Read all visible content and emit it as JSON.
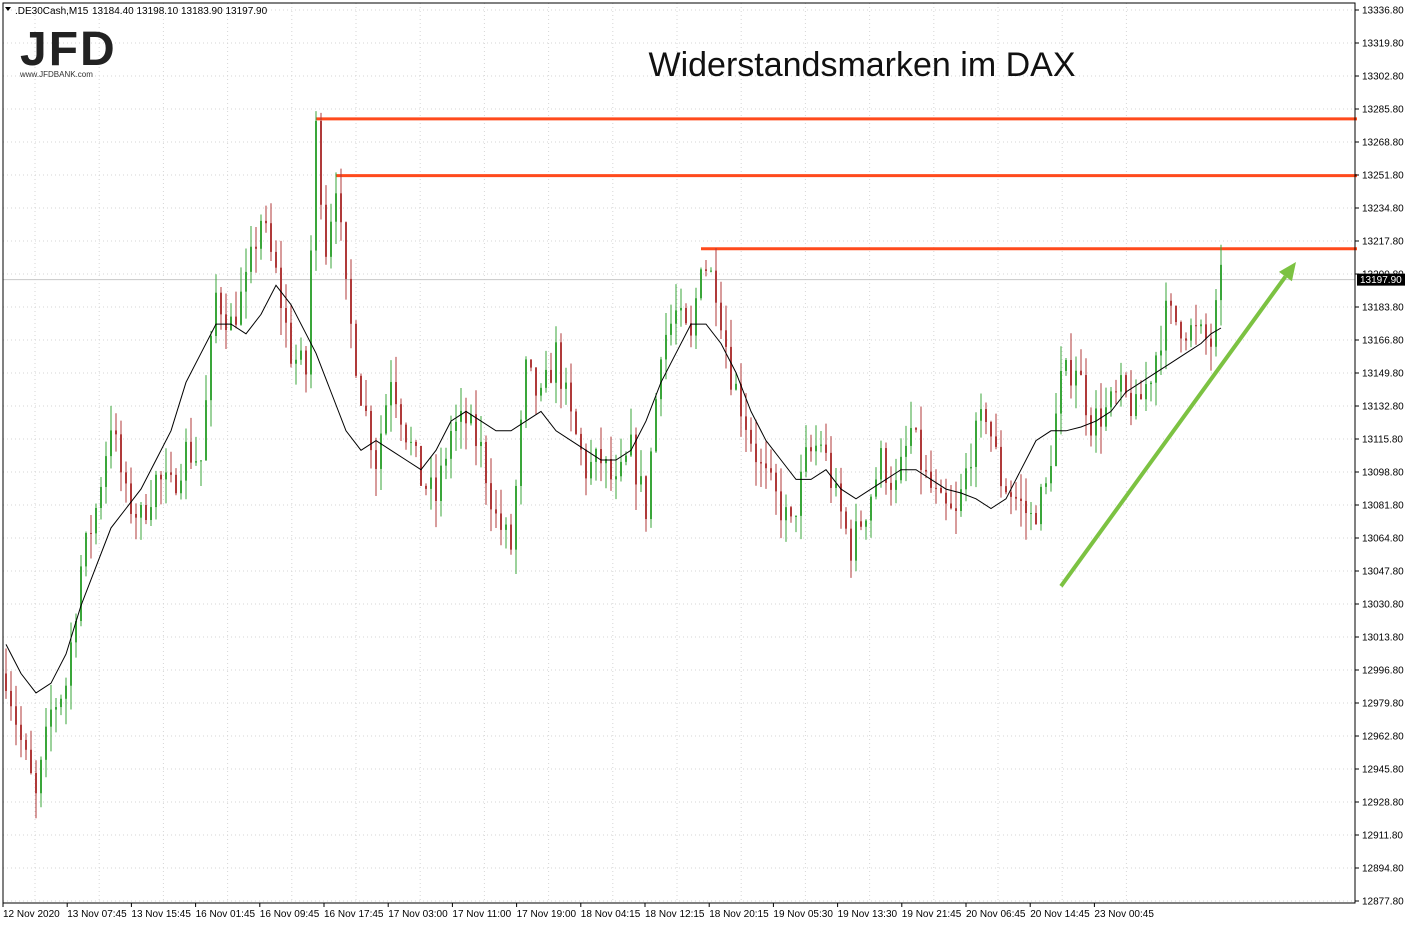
{
  "header": {
    "symbol": ".DE30Cash,M15",
    "ohlc": "13184.40 13198.10 13183.90 13197.90"
  },
  "logo": {
    "text": "JFD",
    "url_text": "www.JFDBANK.com"
  },
  "colors": {
    "up": "#3aa63a",
    "down": "#b03a3a",
    "ma": "#000000",
    "resistance": "#ff4a1c",
    "trend_arrow": "#7cc242",
    "grid": "#d6d6d6"
  },
  "chart_data": {
    "type": "candlestick",
    "title": "Widerstandsmarken im DAX",
    "ylim": [
      12877.8,
      13336.8
    ],
    "y_ticks": [
      13336.8,
      13319.8,
      13302.8,
      13285.8,
      13268.8,
      13251.8,
      13234.8,
      13217.8,
      13200.8,
      13183.8,
      13166.8,
      13149.8,
      13132.8,
      13115.8,
      13098.8,
      13081.8,
      13064.8,
      13047.8,
      13030.8,
      13013.8,
      12996.8,
      12979.8,
      12962.8,
      12945.8,
      12928.8,
      12911.8,
      12894.8,
      12877.8
    ],
    "y_tick_labels": [
      "13336.80",
      "13319.80",
      "13302.80",
      "13285.80",
      "13268.80",
      "13251.80",
      "13234.80",
      "13217.80",
      "13200.80",
      "13183.80",
      "13166.80",
      "13149.80",
      "13132.80",
      "13115.80",
      "13098.80",
      "13081.80",
      "13064.80",
      "13047.80",
      "13030.80",
      "13013.80",
      "12996.80",
      "12979.80",
      "12962.80",
      "12945.80",
      "12928.80",
      "12911.80",
      "12894.80",
      "12877.80"
    ],
    "current_price": 13197.9,
    "current_price_label": "13197.90",
    "x_labels": [
      "12 Nov 2020",
      "13 Nov 07:45",
      "13 Nov 15:45",
      "16 Nov 01:45",
      "16 Nov 09:45",
      "16 Nov 17:45",
      "17 Nov 03:00",
      "17 Nov 11:00",
      "17 Nov 19:00",
      "18 Nov 04:15",
      "18 Nov 12:15",
      "18 Nov 20:15",
      "19 Nov 05:30",
      "19 Nov 13:30",
      "19 Nov 21:45",
      "20 Nov 06:45",
      "20 Nov 14:45",
      "23 Nov 00:45"
    ],
    "price_path": [
      [
        0,
        12995
      ],
      [
        3,
        12960
      ],
      [
        6,
        12930
      ],
      [
        9,
        12975
      ],
      [
        12,
        12990
      ],
      [
        15,
        13050
      ],
      [
        18,
        13080
      ],
      [
        21,
        13125
      ],
      [
        24,
        13085
      ],
      [
        27,
        13075
      ],
      [
        30,
        13095
      ],
      [
        33,
        13090
      ],
      [
        36,
        13110
      ],
      [
        39,
        13105
      ],
      [
        42,
        13190
      ],
      [
        45,
        13175
      ],
      [
        48,
        13195
      ],
      [
        51,
        13230
      ],
      [
        54,
        13200
      ],
      [
        57,
        13160
      ],
      [
        60,
        13150
      ],
      [
        62,
        13275
      ],
      [
        64,
        13215
      ],
      [
        66,
        13250
      ],
      [
        68,
        13190
      ],
      [
        71,
        13140
      ],
      [
        74,
        13105
      ],
      [
        77,
        13150
      ],
      [
        80,
        13120
      ],
      [
        83,
        13095
      ],
      [
        86,
        13085
      ],
      [
        89,
        13120
      ],
      [
        92,
        13125
      ],
      [
        95,
        13110
      ],
      [
        98,
        13075
      ],
      [
        101,
        13060
      ],
      [
        104,
        13150
      ],
      [
        107,
        13135
      ],
      [
        110,
        13160
      ],
      [
        113,
        13125
      ],
      [
        116,
        13100
      ],
      [
        119,
        13105
      ],
      [
        122,
        13090
      ],
      [
        125,
        13110
      ],
      [
        128,
        13080
      ],
      [
        131,
        13165
      ],
      [
        134,
        13180
      ],
      [
        137,
        13165
      ],
      [
        139,
        13210
      ],
      [
        142,
        13195
      ],
      [
        145,
        13150
      ],
      [
        148,
        13125
      ],
      [
        151,
        13100
      ],
      [
        154,
        13085
      ],
      [
        157,
        13070
      ],
      [
        160,
        13105
      ],
      [
        163,
        13115
      ],
      [
        166,
        13085
      ],
      [
        169,
        13060
      ],
      [
        172,
        13080
      ],
      [
        175,
        13105
      ],
      [
        178,
        13090
      ],
      [
        181,
        13120
      ],
      [
        184,
        13095
      ],
      [
        187,
        13080
      ],
      [
        190,
        13075
      ],
      [
        193,
        13110
      ],
      [
        196,
        13130
      ],
      [
        199,
        13095
      ],
      [
        202,
        13085
      ],
      [
        205,
        13075
      ],
      [
        208,
        13090
      ],
      [
        211,
        13145
      ],
      [
        214,
        13155
      ],
      [
        217,
        13125
      ],
      [
        220,
        13130
      ],
      [
        223,
        13140
      ],
      [
        226,
        13130
      ],
      [
        229,
        13150
      ],
      [
        232,
        13180
      ],
      [
        235,
        13175
      ],
      [
        238,
        13170
      ],
      [
        241,
        13165
      ],
      [
        243,
        13197
      ]
    ],
    "moving_average": [
      [
        0,
        13010
      ],
      [
        3,
        12995
      ],
      [
        6,
        12985
      ],
      [
        9,
        12990
      ],
      [
        12,
        13005
      ],
      [
        15,
        13030
      ],
      [
        18,
        13050
      ],
      [
        21,
        13070
      ],
      [
        24,
        13080
      ],
      [
        27,
        13090
      ],
      [
        30,
        13105
      ],
      [
        33,
        13120
      ],
      [
        36,
        13145
      ],
      [
        39,
        13160
      ],
      [
        42,
        13175
      ],
      [
        45,
        13175
      ],
      [
        48,
        13170
      ],
      [
        51,
        13180
      ],
      [
        54,
        13195
      ],
      [
        57,
        13185
      ],
      [
        60,
        13170
      ],
      [
        62,
        13160
      ],
      [
        65,
        13140
      ],
      [
        68,
        13120
      ],
      [
        71,
        13110
      ],
      [
        74,
        13115
      ],
      [
        77,
        13110
      ],
      [
        80,
        13105
      ],
      [
        83,
        13100
      ],
      [
        86,
        13110
      ],
      [
        89,
        13125
      ],
      [
        92,
        13130
      ],
      [
        95,
        13125
      ],
      [
        98,
        13120
      ],
      [
        101,
        13120
      ],
      [
        104,
        13125
      ],
      [
        107,
        13130
      ],
      [
        110,
        13120
      ],
      [
        113,
        13115
      ],
      [
        116,
        13110
      ],
      [
        119,
        13105
      ],
      [
        122,
        13105
      ],
      [
        125,
        13110
      ],
      [
        128,
        13125
      ],
      [
        131,
        13145
      ],
      [
        134,
        13160
      ],
      [
        137,
        13175
      ],
      [
        140,
        13175
      ],
      [
        143,
        13165
      ],
      [
        146,
        13150
      ],
      [
        149,
        13130
      ],
      [
        152,
        13115
      ],
      [
        155,
        13105
      ],
      [
        158,
        13095
      ],
      [
        161,
        13095
      ],
      [
        164,
        13100
      ],
      [
        167,
        13090
      ],
      [
        170,
        13085
      ],
      [
        173,
        13090
      ],
      [
        176,
        13095
      ],
      [
        179,
        13100
      ],
      [
        182,
        13100
      ],
      [
        185,
        13095
      ],
      [
        188,
        13090
      ],
      [
        191,
        13088
      ],
      [
        194,
        13085
      ],
      [
        197,
        13080
      ],
      [
        200,
        13085
      ],
      [
        203,
        13100
      ],
      [
        206,
        13115
      ],
      [
        209,
        13120
      ],
      [
        212,
        13120
      ],
      [
        215,
        13122
      ],
      [
        218,
        13125
      ],
      [
        221,
        13130
      ],
      [
        224,
        13140
      ],
      [
        227,
        13145
      ],
      [
        230,
        13150
      ],
      [
        233,
        13155
      ],
      [
        236,
        13160
      ],
      [
        239,
        13165
      ],
      [
        241,
        13170
      ],
      [
        243,
        13173
      ]
    ],
    "resistance_levels": [
      {
        "level": 13280.7,
        "from_x": 62,
        "to_x": 280
      },
      {
        "level": 13251.5,
        "from_x": 66,
        "to_x": 273
      },
      {
        "level": 13213.8,
        "from_x": 139,
        "to_x": 271
      }
    ],
    "trend_arrow": {
      "from": [
        211,
        13040
      ],
      "to": [
        258,
        13207
      ]
    }
  }
}
